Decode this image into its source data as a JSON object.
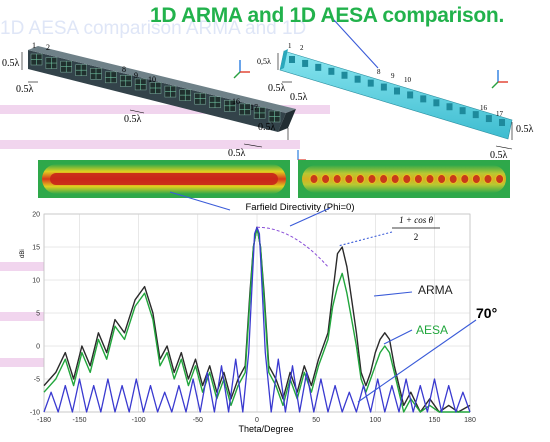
{
  "title": "1D ARMA and 1D AESA comparison.",
  "ghost_text": "1D AESA comparison ARMA and 1D",
  "colors": {
    "title": "#22b24c",
    "arma_curve": "#2a2a2a",
    "aesa_curve": "#21a63c",
    "blue_curve": "#3a3ad0",
    "violet_curve": "#8a4fd8",
    "arma_array": "#4a5a60",
    "aesa_array": "#5bd5e6",
    "grid": "#d0d0d0"
  },
  "arma_array": {
    "element_labels": [
      "1",
      "2",
      "8",
      "9",
      "10",
      "16",
      "17"
    ],
    "dims": [
      "0.5λ",
      "0.5λ",
      "0.5λ",
      "0.5λ",
      "0.5λ"
    ],
    "element_count": 17
  },
  "aesa_array": {
    "element_labels": [
      "1",
      "2",
      "8",
      "9",
      "10",
      "16",
      "17"
    ],
    "dims": [
      "0,5λ",
      "0.5λ",
      "0.5λ",
      "0.5λ",
      "0.5λ"
    ],
    "element_count": 17
  },
  "chart_data": {
    "type": "line",
    "title": "Farfield Directivity (Phi=0)",
    "xlabel": "Theta/Degree",
    "ylabel": "dBi",
    "xlim": [
      -180,
      180
    ],
    "ylim": [
      -10,
      20
    ],
    "x_ticks": [
      "-180",
      "-150",
      "-100",
      "-50",
      "0",
      "50",
      "100",
      "150",
      "180"
    ],
    "y_ticks": [
      "20",
      "15",
      "10",
      "5",
      "0",
      "-5",
      "-10"
    ],
    "grid": true,
    "legend": [
      "ARMA",
      "AESA"
    ],
    "annotations": {
      "formula_numerator": "1 + cos θ",
      "formula_denominator": "2",
      "angle": "70°"
    },
    "series": [
      {
        "name": "ARMA",
        "x": [
          -180,
          -170,
          -162,
          -155,
          -148,
          -141,
          -134,
          -127,
          -120,
          -112,
          -103,
          -95,
          -88,
          -82,
          -76,
          -70,
          -64,
          -58,
          -52,
          -46,
          -40,
          -34,
          -28,
          -22,
          -16,
          -10,
          -6,
          -3,
          0,
          3,
          6,
          10,
          16,
          22,
          28,
          34,
          40,
          46,
          52,
          56,
          60,
          64,
          68,
          72,
          76,
          80,
          84,
          88,
          92,
          96,
          100,
          104,
          108,
          112,
          116,
          120,
          124,
          130,
          138,
          146,
          154,
          162,
          170,
          180
        ],
        "y": [
          -6,
          -4,
          -1,
          -5,
          0,
          -3,
          2,
          -1,
          4,
          2,
          7,
          9,
          5,
          -2,
          0,
          -4,
          -1,
          -5,
          -2,
          -6,
          -3,
          -7,
          -4,
          -8,
          -5,
          -3,
          8,
          15,
          18,
          15,
          8,
          -3,
          -5,
          -8,
          -4,
          -7,
          -3,
          -6,
          -2,
          0,
          2,
          8,
          14,
          15,
          12,
          7,
          2,
          -4,
          -6,
          -4,
          -1,
          1,
          2,
          1,
          -3,
          -6,
          -9,
          -7,
          -10,
          -8,
          -10,
          -9,
          -10,
          -9
        ]
      },
      {
        "name": "AESA",
        "x": [
          -180,
          -170,
          -162,
          -155,
          -148,
          -141,
          -134,
          -127,
          -120,
          -112,
          -103,
          -95,
          -88,
          -82,
          -76,
          -70,
          -64,
          -58,
          -52,
          -46,
          -40,
          -34,
          -28,
          -22,
          -16,
          -10,
          -6,
          -3,
          0,
          3,
          6,
          10,
          16,
          22,
          28,
          34,
          40,
          46,
          52,
          56,
          60,
          64,
          68,
          72,
          76,
          80,
          84,
          88,
          92,
          96,
          100,
          104,
          108,
          112,
          116,
          120,
          124,
          130,
          138,
          146,
          154,
          162,
          170,
          180
        ],
        "y": [
          -7,
          -5,
          -2,
          -6,
          -1,
          -4,
          1,
          -2,
          3,
          1,
          6,
          8,
          4,
          -3,
          -1,
          -5,
          -2,
          -6,
          -3,
          -7,
          -4,
          -8,
          -5,
          -9,
          -6,
          -4,
          7,
          15,
          18,
          15,
          7,
          -4,
          -6,
          -9,
          -5,
          -8,
          -4,
          -7,
          -3,
          -1,
          1,
          6,
          9,
          11,
          8,
          4,
          0,
          -5,
          -7,
          -5,
          -3,
          -1,
          0,
          -1,
          -4,
          -7,
          -10,
          -8,
          -10,
          -9,
          -10,
          -10,
          -10,
          -10
        ]
      },
      {
        "name": "",
        "x": [
          -180,
          -174,
          -168,
          -162,
          -156,
          -150,
          -144,
          -138,
          -132,
          -126,
          -120,
          -114,
          -108,
          -102,
          -96,
          -90,
          -84,
          -78,
          -72,
          -66,
          -60,
          -54,
          -48,
          -42,
          -36,
          -30,
          -24,
          -18,
          -12,
          -7,
          -4,
          -2,
          0,
          2,
          4,
          7,
          12,
          18,
          24,
          30,
          36,
          42,
          48,
          54,
          60,
          66,
          72,
          78,
          84,
          90,
          96,
          102,
          108,
          114,
          120,
          126,
          132,
          138,
          144,
          150,
          156,
          162,
          168,
          174,
          180
        ],
        "y": [
          -10,
          -7,
          -10,
          -6,
          -10,
          -5,
          -10,
          -6,
          -10,
          -5,
          -10,
          -6,
          -10,
          -5,
          -10,
          -6,
          -10,
          -7,
          -10,
          -6,
          -10,
          -5,
          -10,
          -4,
          -10,
          -3,
          -10,
          -2,
          -10,
          -1,
          10,
          17,
          18,
          17,
          10,
          -1,
          -10,
          -2,
          -10,
          -3,
          -10,
          -4,
          -10,
          -5,
          -10,
          -6,
          -10,
          -7,
          -10,
          -6,
          -10,
          -5,
          -10,
          -6,
          -10,
          -5,
          -10,
          -6,
          -10,
          -5,
          -10,
          -6,
          -10,
          -7,
          -10
        ]
      }
    ]
  }
}
